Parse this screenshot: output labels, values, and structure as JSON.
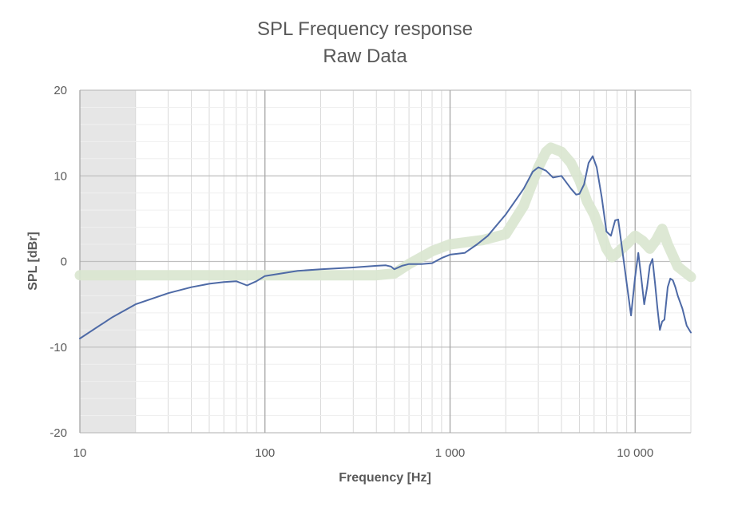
{
  "chart_data": {
    "type": "line",
    "title": "SPL Frequency  response",
    "subtitle": "Raw Data",
    "xlabel": "Frequency [Hz]",
    "ylabel": "SPL [dBr]",
    "x_scale": "log",
    "xlim": [
      10,
      20000
    ],
    "ylim": [
      -20,
      20
    ],
    "grid": true,
    "x_ticks": [
      {
        "value": 10,
        "label": "10"
      },
      {
        "value": 100,
        "label": "100"
      },
      {
        "value": 1000,
        "label": "1 000"
      },
      {
        "value": 10000,
        "label": "10 000"
      }
    ],
    "y_ticks": [
      {
        "value": 20,
        "label": "20"
      },
      {
        "value": 10,
        "label": "10"
      },
      {
        "value": 0,
        "label": "0"
      },
      {
        "value": -10,
        "label": "-10"
      },
      {
        "value": -20,
        "label": "-20"
      }
    ],
    "shaded_region": {
      "x_from": 10,
      "x_to": 20,
      "color": "#e6e6e6"
    },
    "series": [
      {
        "color": "#d9e6cf",
        "style": "band",
        "x": [
          10,
          50,
          100,
          200,
          300,
          400,
          500,
          600,
          700,
          800,
          1000,
          1500,
          2000,
          2500,
          3000,
          3300,
          3500,
          4000,
          4500,
          5000,
          5500,
          6000,
          6500,
          7000,
          7500,
          8000,
          9000,
          10000,
          11000,
          12000,
          13000,
          14000,
          15000,
          17000,
          20000
        ],
        "y": [
          -1.6,
          -1.6,
          -1.6,
          -1.6,
          -1.6,
          -1.6,
          -1.4,
          -0.3,
          0.5,
          1.2,
          2.0,
          2.5,
          3.2,
          6.5,
          11.0,
          12.8,
          13.3,
          12.8,
          11.5,
          9.5,
          7.0,
          5.5,
          3.5,
          1.5,
          0.5,
          1.0,
          2.0,
          3.0,
          2.4,
          1.5,
          2.5,
          3.8,
          2.0,
          -0.6,
          -1.8
        ]
      },
      {
        "color": "#4e6aa6",
        "style": "line",
        "x": [
          10,
          15,
          20,
          30,
          40,
          50,
          60,
          70,
          80,
          90,
          100,
          150,
          200,
          300,
          400,
          450,
          480,
          500,
          550,
          600,
          700,
          800,
          900,
          1000,
          1200,
          1400,
          1600,
          2000,
          2500,
          2800,
          3000,
          3300,
          3600,
          4000,
          4500,
          4800,
          5000,
          5300,
          5600,
          5900,
          6200,
          6600,
          7000,
          7400,
          7800,
          8100,
          8500,
          9000,
          9500,
          10000,
          10400,
          10800,
          11200,
          11600,
          12000,
          12400,
          12800,
          13200,
          13600,
          14000,
          14400,
          15000,
          15500,
          16000,
          16500,
          17000,
          18000,
          19000,
          20000
        ],
        "y": [
          -9.0,
          -6.5,
          -5.0,
          -3.7,
          -3.0,
          -2.6,
          -2.4,
          -2.3,
          -2.8,
          -2.3,
          -1.7,
          -1.1,
          -0.9,
          -0.7,
          -0.5,
          -0.45,
          -0.6,
          -0.9,
          -0.5,
          -0.3,
          -0.3,
          -0.2,
          0.4,
          0.8,
          1.0,
          2.0,
          3.0,
          5.5,
          8.5,
          10.5,
          11.0,
          10.6,
          9.8,
          10.0,
          8.5,
          7.8,
          7.9,
          9.0,
          11.5,
          12.3,
          11.0,
          7.5,
          3.5,
          3.0,
          4.8,
          4.9,
          1.5,
          -2.5,
          -6.3,
          -1.8,
          1.0,
          -2.0,
          -5.0,
          -3.0,
          -0.5,
          0.3,
          -2.5,
          -5.5,
          -8.0,
          -7.0,
          -6.8,
          -3.0,
          -2.0,
          -2.2,
          -3.0,
          -4.0,
          -5.5,
          -7.5,
          -8.3
        ]
      }
    ]
  }
}
